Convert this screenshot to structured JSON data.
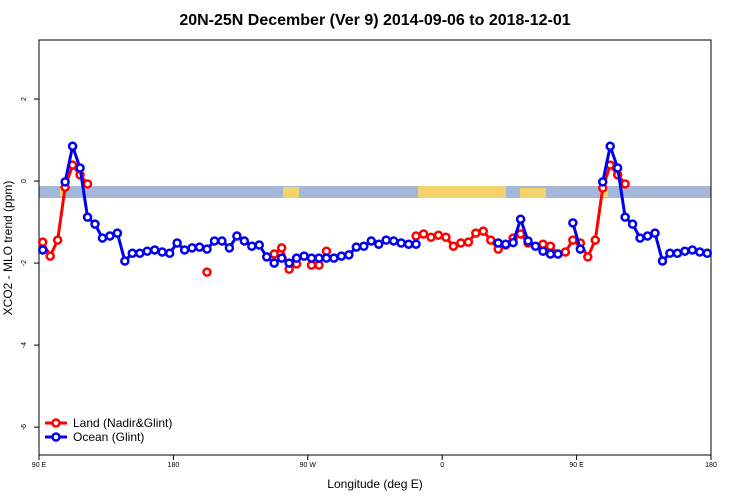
{
  "chart_data": {
    "type": "line",
    "title": "20N-25N December (Ver 9)   2014-09-06 to 2018-12-01",
    "x_label": "Longitude (deg E)",
    "y_label": "XCO2 - MLO trend (ppm)",
    "xlim": [
      90,
      540
    ],
    "xticks": [
      {
        "value": 90,
        "label": "90 E"
      },
      180,
      {
        "value": 270,
        "label": "90 W"
      },
      {
        "value": 360,
        "label": "0"
      },
      {
        "value": 450,
        "label": "90 E"
      },
      {
        "value": 540,
        "label": "180"
      }
    ],
    "ylim": [
      -6.68,
      3.44
    ],
    "yticks": [
      -6,
      -4,
      -2,
      0,
      2
    ],
    "legend": "bottom-left",
    "x": [
      92.5,
      97.5,
      102.5,
      107.5,
      112.5,
      117.5,
      122.5,
      127.5,
      132.5,
      137.5,
      142.5,
      147.5,
      152.5,
      157.5,
      162.5,
      167.5,
      172.5,
      177.5,
      182.5,
      187.5,
      192.5,
      197.5,
      202.5,
      207.5,
      212.5,
      217.5,
      222.5,
      227.5,
      232.5,
      237.5,
      242.5,
      247.5,
      252.5,
      257.5,
      262.5,
      267.5,
      272.5,
      277.5,
      282.5,
      287.5,
      292.5,
      297.5,
      302.5,
      307.5,
      312.5,
      317.5,
      322.5,
      327.5,
      332.5,
      337.5,
      342.5,
      347.5,
      352.5,
      357.5,
      362.5,
      367.5,
      372.5,
      377.5,
      382.5,
      387.5,
      392.5,
      397.5,
      402.5,
      407.5,
      412.5,
      417.5,
      422.5,
      427.5,
      432.5,
      437.5,
      442.5,
      447.5,
      452.5,
      457.5,
      462.5,
      467.5,
      472.5,
      477.5,
      482.5,
      487.5,
      492.5,
      497.5,
      502.5,
      507.5,
      512.5,
      517.5,
      522.5,
      527.5,
      532.5,
      537.5
    ],
    "series": [
      {
        "name": "Land (Nadir&Glint)",
        "color": "#ff0000",
        "values": [
          -1.49,
          -1.83,
          -1.44,
          -0.15,
          0.39,
          0.15,
          -0.07,
          null,
          null,
          null,
          null,
          null,
          null,
          null,
          null,
          null,
          null,
          null,
          null,
          null,
          null,
          null,
          -2.22,
          null,
          null,
          null,
          null,
          null,
          null,
          null,
          null,
          -1.78,
          -1.63,
          -2.15,
          -2.02,
          null,
          -2.05,
          -2.05,
          -1.71,
          null,
          null,
          null,
          null,
          null,
          null,
          null,
          null,
          null,
          null,
          null,
          -1.34,
          -1.29,
          -1.37,
          -1.32,
          -1.37,
          -1.59,
          -1.51,
          -1.49,
          -1.27,
          -1.22,
          -1.44,
          -1.66,
          -1.56,
          -1.39,
          -1.29,
          -1.51,
          null,
          -1.54,
          -1.59,
          -1.78,
          -1.73,
          -1.44,
          -1.51,
          -1.85,
          -1.44,
          -0.17,
          0.39,
          0.15,
          -0.07,
          null,
          null,
          null,
          null,
          null,
          null,
          null,
          null,
          null,
          null,
          null
        ]
      },
      {
        "name": "Ocean (Glint)",
        "color": "#0000ee",
        "values": [
          -1.68,
          null,
          null,
          -0.02,
          0.85,
          0.32,
          -0.88,
          -1.05,
          -1.39,
          -1.34,
          -1.27,
          -1.95,
          -1.76,
          -1.76,
          -1.71,
          -1.68,
          -1.73,
          -1.76,
          -1.51,
          -1.68,
          -1.63,
          -1.61,
          -1.66,
          -1.46,
          -1.46,
          -1.63,
          -1.34,
          -1.46,
          -1.59,
          -1.56,
          -1.85,
          -2.0,
          -1.88,
          -2.0,
          -1.88,
          -1.83,
          -1.88,
          -1.88,
          -1.88,
          -1.88,
          -1.83,
          -1.8,
          -1.61,
          -1.59,
          -1.46,
          -1.54,
          -1.44,
          -1.46,
          -1.51,
          -1.54,
          -1.54,
          null,
          null,
          null,
          null,
          null,
          null,
          null,
          null,
          null,
          null,
          -1.51,
          -1.54,
          -1.5,
          -0.93,
          -1.46,
          -1.59,
          -1.71,
          -1.78,
          -1.78,
          null,
          -1.02,
          -1.66,
          null,
          null,
          -0.02,
          0.85,
          0.32,
          -0.88,
          -1.05,
          -1.39,
          -1.34,
          -1.27,
          -1.95,
          -1.76,
          -1.76,
          -1.71,
          -1.68,
          -1.73,
          -1.76
        ]
      }
    ]
  }
}
